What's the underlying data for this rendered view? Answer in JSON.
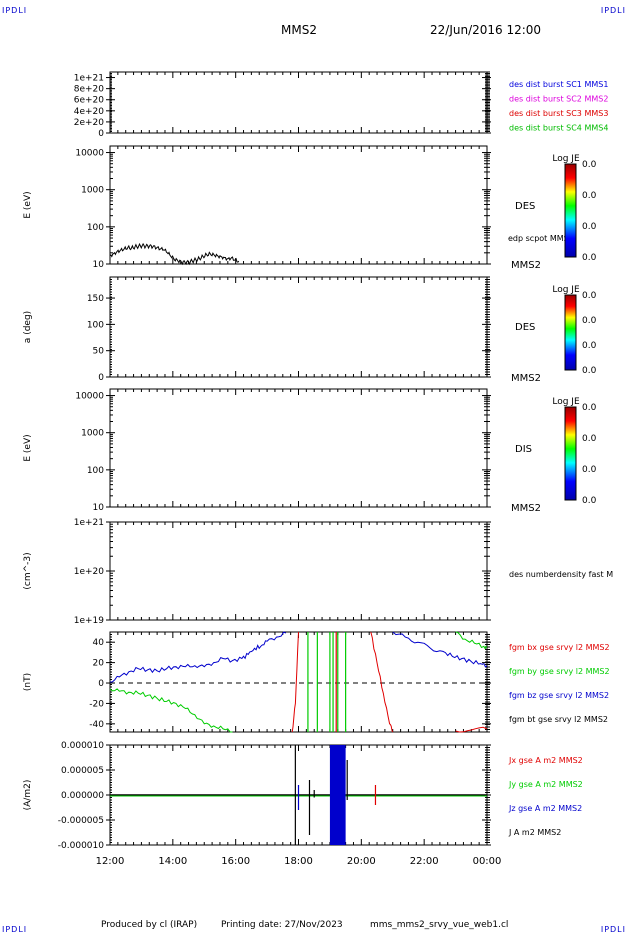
{
  "header": {
    "corner_tl": "IPDLI",
    "corner_tr": "IPDLI",
    "spacecraft": "MMS2",
    "datetime": "22/Jun/2016 12:00"
  },
  "footer": {
    "produced_by": "Produced by cl (IRAP)",
    "printing_date": "Printing date: 27/Nov/2023",
    "filename": "mms_mms2_srvy_vue_web1.cl",
    "corner_bl": "IPDLI",
    "corner_br": "IPDLI"
  },
  "colors": {
    "bx": "#e00000",
    "by": "#00cc00",
    "bz": "#0000cc",
    "bt": "#000000",
    "c1": "#0000dd",
    "c2": "#dd00dd",
    "c3": "#dd0000",
    "c4": "#00bb00"
  },
  "chart_data": [
    {
      "id": "panel1",
      "type": "line",
      "ylabel": "",
      "yticks": [
        "1e+21",
        "8e+20",
        "6e+20",
        "4e+20",
        "2e+20",
        "0"
      ],
      "ylim": [
        0,
        1.1e+21
      ],
      "dashed_zero": true,
      "legend": [
        "des dist burst SC1 MMS1",
        "des dist burst SC2 MMS2",
        "des dist burst SC3 MMS3",
        "des dist burst SC4 MMS4"
      ]
    },
    {
      "id": "panel2",
      "type": "line",
      "ylabel": "E (eV)",
      "yscale": "log",
      "ylim": [
        10,
        15000
      ],
      "yticks": [
        "10000",
        "1000",
        "100",
        "10"
      ],
      "side_label": "DES",
      "sub_label": "edp scpot MMS2",
      "bottom_label": "MMS2",
      "colorbar": {
        "title": "Log JE",
        "ticks": [
          "0.0",
          "0.0",
          "0.0",
          "0.0"
        ]
      },
      "series": [
        {
          "name": "edp scpot MMS2",
          "x_start": 12.0,
          "x_end": 16.1,
          "values": [
            17,
            19,
            22,
            24,
            26,
            28,
            27,
            29,
            30,
            31,
            30,
            30,
            29,
            27,
            25,
            24,
            20,
            16,
            13,
            12,
            11,
            11,
            11,
            12,
            13,
            14,
            16,
            18,
            19,
            18,
            17,
            16,
            15,
            14,
            15,
            13,
            12
          ]
        }
      ]
    },
    {
      "id": "panel3",
      "type": "heatmap",
      "ylabel": "a (deg)",
      "ylim": [
        0,
        190
      ],
      "yticks": [
        "150",
        "100",
        "50",
        "0"
      ],
      "side_label": "DES",
      "bottom_label": "MMS2",
      "colorbar": {
        "title": "Log JE",
        "ticks": [
          "0.0",
          "0.0",
          "0.0",
          "0.0"
        ]
      }
    },
    {
      "id": "panel4",
      "type": "heatmap",
      "ylabel": "E (eV)",
      "yscale": "log",
      "ylim": [
        10,
        15000
      ],
      "yticks": [
        "10000",
        "1000",
        "100",
        "10"
      ],
      "side_label": "DIS",
      "bottom_label": "MMS2",
      "colorbar": {
        "title": "Log JE",
        "ticks": [
          "0.0",
          "0.0",
          "0.0",
          "0.0"
        ]
      }
    },
    {
      "id": "panel5",
      "type": "line",
      "ylabel": "(cm^-3)",
      "yscale": "log",
      "ylim": [
        1e+19,
        1e+21
      ],
      "yticks": [
        "1e+21",
        "1e+20",
        "1e+19"
      ],
      "legend": [
        "des numberdensity fast M"
      ]
    },
    {
      "id": "panel6",
      "type": "line",
      "ylabel": "(nT)",
      "ylim": [
        -48,
        50
      ],
      "yticks": [
        "40",
        "20",
        "0",
        "-20",
        "-40"
      ],
      "dashed_zero": true,
      "legend": [
        "fgm bx gse srvy l2 MMS2",
        "fgm by gse srvy l2 MMS2",
        "fgm bz gse srvy l2 MMS2",
        "fgm bt gse srvy l2 MMS2"
      ],
      "series": [
        {
          "name": "fgm bz gse srvy l2 MMS2",
          "color_key": "bz",
          "x": [
            12.0,
            12.3,
            12.6,
            12.9,
            13.2,
            13.5,
            13.8,
            14.1,
            14.4,
            14.7,
            15.0,
            15.3,
            15.6,
            15.9,
            16.2,
            16.4,
            16.6,
            16.8,
            17.0,
            17.3,
            17.6
          ],
          "values": [
            1,
            6,
            11,
            14,
            13,
            12,
            14,
            16,
            16,
            17,
            16,
            20,
            24,
            22,
            24,
            28,
            34,
            36,
            41,
            45,
            49
          ]
        },
        {
          "name": "fgm bz gse srvy l2 MMS2",
          "color_key": "bz",
          "x": [
            21.0,
            21.4,
            21.8,
            22.2,
            22.6,
            22.9,
            23.2,
            23.5,
            23.8,
            24.0
          ],
          "values": [
            50,
            45,
            40,
            34,
            31,
            26,
            24,
            21,
            19,
            17
          ]
        },
        {
          "name": "fgm by gse srvy l2 MMS2",
          "color_key": "by",
          "x": [
            12.0,
            12.3,
            12.6,
            12.9,
            13.2,
            13.5,
            13.8,
            14.1,
            14.4,
            14.7,
            15.0,
            15.3,
            15.6,
            15.9
          ],
          "values": [
            -6,
            -8,
            -9,
            -10,
            -12,
            -15,
            -18,
            -20,
            -25,
            -31,
            -40,
            -42,
            -45,
            -48
          ]
        },
        {
          "name": "fgm by gse srvy l2 MMS2",
          "color_key": "by",
          "x": [
            23.0,
            23.3,
            23.6,
            23.9,
            24.0
          ],
          "values": [
            50,
            43,
            39,
            36,
            35
          ]
        },
        {
          "name": "fgm bx gse srvy l2 MMS2",
          "color_key": "bx",
          "x": [
            17.8,
            17.9,
            18.0
          ],
          "values": [
            -48,
            -20,
            50
          ]
        },
        {
          "name": "fgm bx gse srvy l2 MMS2",
          "color_key": "bx",
          "x": [
            20.3,
            20.5,
            20.7,
            20.9,
            21.0
          ],
          "values": [
            50,
            20,
            -10,
            -40,
            -48
          ]
        },
        {
          "name": "fgm bx gse srvy l2 MMS2",
          "color_key": "bx",
          "x": [
            23.0,
            23.5,
            24.0
          ],
          "values": [
            -47,
            -46,
            -45
          ]
        }
      ],
      "vlines": [
        {
          "x": 18.3,
          "color_key": "by"
        },
        {
          "x": 18.6,
          "color_key": "by"
        },
        {
          "x": 19.0,
          "color_key": "by"
        },
        {
          "x": 19.1,
          "color_key": "by"
        },
        {
          "x": 19.2,
          "color_key": "bx"
        },
        {
          "x": 19.25,
          "color_key": "by"
        },
        {
          "x": 19.5,
          "color_key": "by"
        }
      ]
    },
    {
      "id": "panel7",
      "type": "line",
      "ylabel": "(A/m2)",
      "ylim": [
        -1e-05,
        1e-05
      ],
      "yticks": [
        "0.000010",
        "0.000005",
        "0.000000",
        "-0.000005",
        "-0.000010"
      ],
      "legend": [
        "Jx gse A m2 MMS2",
        "Jy gse A m2 MMS2",
        "Jz gse A m2 MMS2",
        "J A m2 MMS2"
      ],
      "bursts": [
        {
          "x": 17.9,
          "ymin": -1e-05,
          "ymax": 1e-05,
          "color_key": "bt"
        },
        {
          "x": 18.0,
          "ymin": -3e-06,
          "ymax": 2e-06,
          "color_key": "bz"
        },
        {
          "x": 18.35,
          "ymin": -8e-06,
          "ymax": 3e-06,
          "color_key": "bt"
        },
        {
          "x": 18.5,
          "ymin": -5e-07,
          "ymax": 1e-06,
          "color_key": "bt"
        },
        {
          "x": 19.0,
          "ymin": -1e-05,
          "ymax": 1e-05,
          "color_key": "bz",
          "width": 0.5
        },
        {
          "x": 19.55,
          "ymin": -1e-06,
          "ymax": 7e-06,
          "color_key": "bt"
        },
        {
          "x": 20.45,
          "ymin": -2e-06,
          "ymax": 2e-06,
          "color_key": "bx"
        }
      ]
    }
  ],
  "xaxis": {
    "ticks": [
      "12:00",
      "14:00",
      "16:00",
      "18:00",
      "20:00",
      "22:00",
      "00:00"
    ],
    "xlim": [
      12,
      24
    ]
  }
}
